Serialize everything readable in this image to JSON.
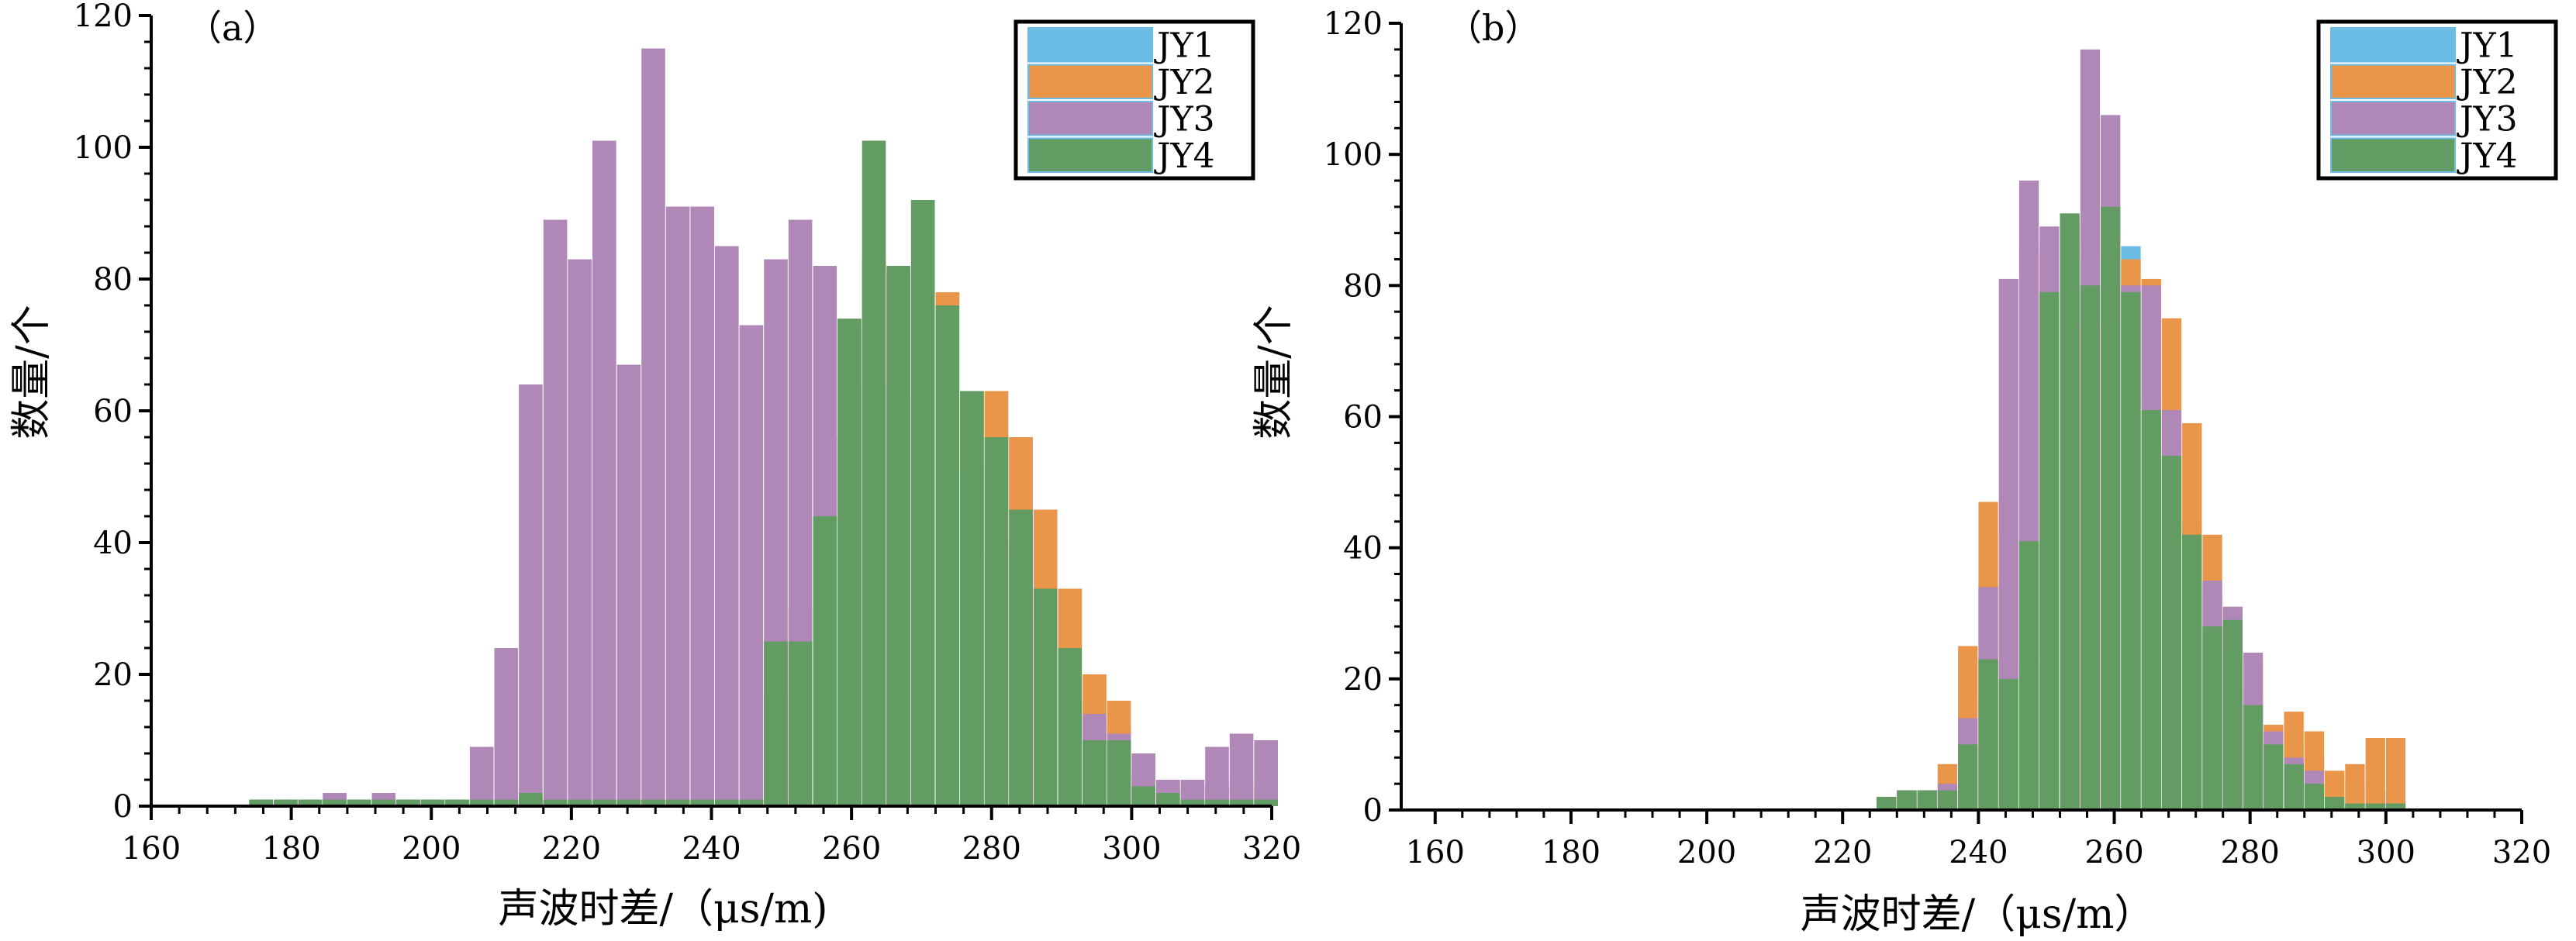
{
  "chart_data": [
    {
      "id": "a",
      "type": "bar",
      "panel_label": "（a）",
      "xlabel": "声波时差/（μs/m)",
      "ylabel": "数量/个",
      "xlim": [
        160,
        320
      ],
      "ylim": [
        0,
        120
      ],
      "xticks": [
        160,
        180,
        200,
        220,
        240,
        260,
        280,
        300,
        320
      ],
      "yticks": [
        0,
        20,
        40,
        60,
        80,
        100,
        120
      ],
      "bin_start": 174,
      "bin_width": 3.5,
      "legend": "top-right",
      "series": [
        {
          "name": "JY1",
          "color": "#6cbde6",
          "values": [
            1,
            1,
            1,
            1,
            1,
            1,
            1,
            1,
            1,
            1,
            1,
            1,
            1,
            1,
            1,
            1,
            1,
            1,
            1,
            1,
            1,
            17,
            30,
            56,
            74,
            83,
            81,
            92,
            78,
            63,
            63,
            56,
            45,
            33,
            16,
            12,
            5,
            4,
            3,
            3,
            4,
            3
          ]
        },
        {
          "name": "JY2",
          "color": "#e9964b",
          "values": [
            1,
            1,
            1,
            1,
            1,
            1,
            1,
            1,
            1,
            1,
            1,
            1,
            1,
            1,
            1,
            1,
            1,
            1,
            1,
            1,
            1,
            17,
            30,
            56,
            74,
            83,
            81,
            92,
            78,
            63,
            63,
            56,
            45,
            33,
            20,
            16,
            5,
            4,
            3,
            3,
            4,
            3
          ]
        },
        {
          "name": "JY3",
          "color": "#b088b8",
          "values": [
            1,
            1,
            1,
            2,
            1,
            2,
            1,
            1,
            1,
            9,
            24,
            64,
            89,
            83,
            101,
            67,
            115,
            91,
            91,
            85,
            73,
            83,
            89,
            82,
            72,
            64,
            63,
            62,
            57,
            51,
            38,
            40,
            28,
            20,
            14,
            11,
            8,
            4,
            4,
            9,
            11,
            10
          ]
        },
        {
          "name": "JY4",
          "color": "#629c62",
          "values": [
            1,
            1,
            1,
            1,
            1,
            1,
            1,
            1,
            1,
            1,
            1,
            2,
            1,
            1,
            1,
            1,
            1,
            1,
            1,
            1,
            1,
            25,
            25,
            44,
            74,
            101,
            82,
            92,
            76,
            63,
            56,
            45,
            33,
            24,
            10,
            10,
            3,
            2,
            1,
            1,
            1,
            1
          ]
        }
      ]
    },
    {
      "id": "b",
      "type": "bar",
      "panel_label": "（b）",
      "xlabel": "声波时差/（μs/m）",
      "ylabel": "数量/个",
      "xlim": [
        155,
        320
      ],
      "ylim": [
        0,
        120
      ],
      "xticks": [
        160,
        180,
        200,
        220,
        240,
        260,
        280,
        300,
        320
      ],
      "yticks": [
        0,
        20,
        40,
        60,
        80,
        100,
        120
      ],
      "bin_start": 225,
      "bin_width": 3,
      "legend": "top-right",
      "series": [
        {
          "name": "JY1",
          "color": "#6cbde6",
          "values": [
            2,
            3,
            3,
            3,
            10,
            17,
            35,
            23,
            41,
            57,
            84,
            74,
            86,
            63,
            56,
            44,
            33,
            24,
            18,
            12,
            10,
            8,
            5,
            4,
            3,
            3
          ]
        },
        {
          "name": "JY2",
          "color": "#e9964b",
          "values": [
            2,
            3,
            3,
            7,
            25,
            47,
            42,
            86,
            85,
            86,
            74,
            88,
            84,
            81,
            75,
            59,
            42,
            31,
            23,
            13,
            15,
            12,
            6,
            7,
            11,
            11
          ]
        },
        {
          "name": "JY3",
          "color": "#b088b8",
          "values": [
            2,
            3,
            3,
            4,
            14,
            34,
            81,
            96,
            89,
            90,
            116,
            106,
            80,
            80,
            61,
            41,
            35,
            31,
            24,
            12,
            8,
            6,
            2,
            1,
            1,
            1
          ]
        },
        {
          "name": "JY4",
          "color": "#629c62",
          "values": [
            2,
            3,
            3,
            3,
            10,
            23,
            20,
            41,
            79,
            91,
            80,
            92,
            79,
            61,
            54,
            42,
            28,
            29,
            16,
            10,
            7,
            4,
            2,
            1,
            1,
            1
          ]
        }
      ]
    }
  ]
}
